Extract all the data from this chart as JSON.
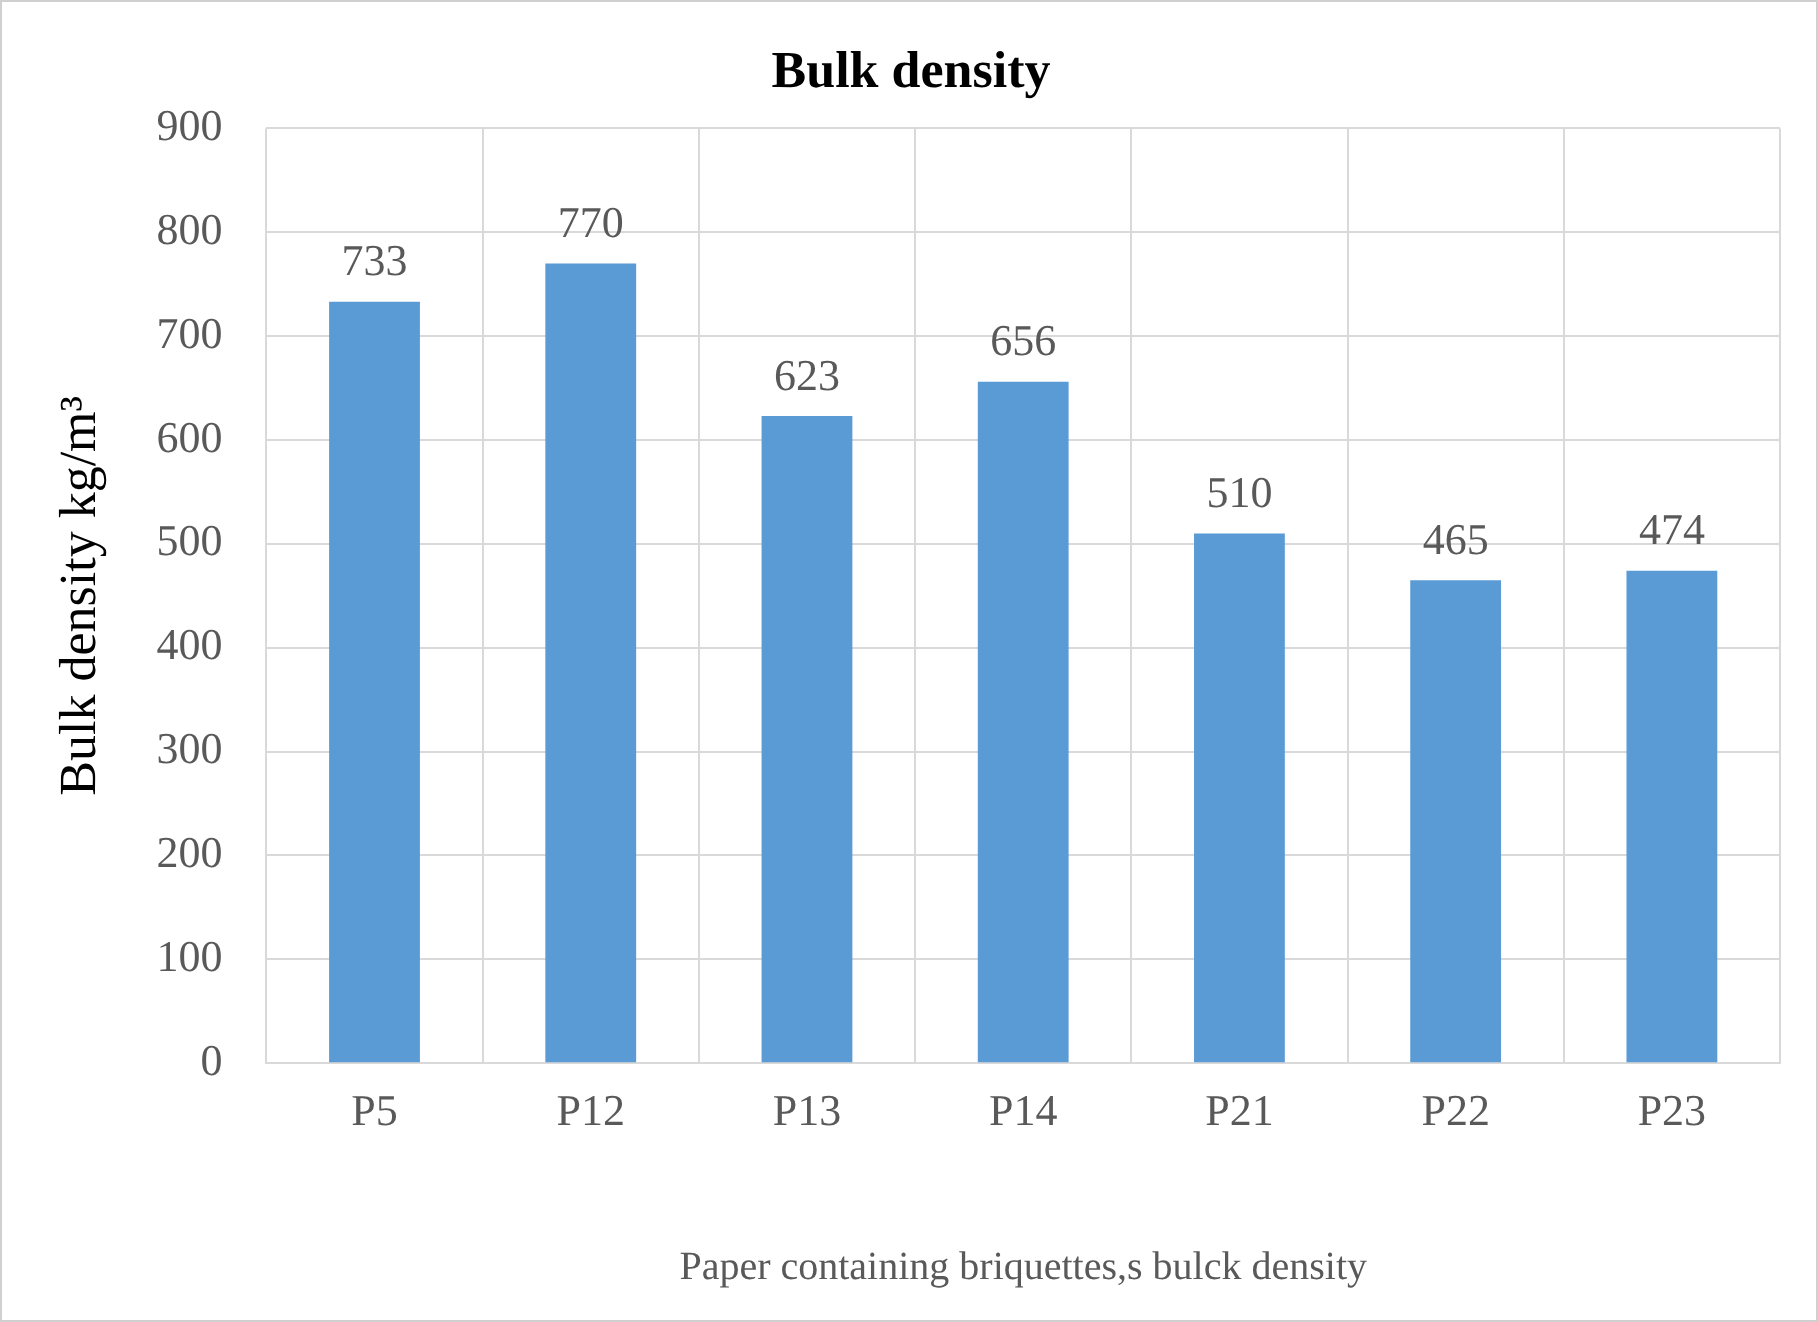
{
  "chart_data": {
    "type": "bar",
    "title": "Bulk density",
    "xlabel": "Paper containing briquettes,s bulck density",
    "ylabel": "Bulk density kg/m³",
    "categories": [
      "P5",
      "P12",
      "P13",
      "P14",
      "P21",
      "P22",
      "P23"
    ],
    "values": [
      733,
      770,
      623,
      656,
      510,
      465,
      474
    ],
    "color": "#5b9bd5",
    "ylim": [
      0,
      900
    ],
    "yticks": [
      0,
      100,
      200,
      300,
      400,
      500,
      600,
      700,
      800,
      900
    ],
    "grid": true,
    "data_labels": true
  }
}
